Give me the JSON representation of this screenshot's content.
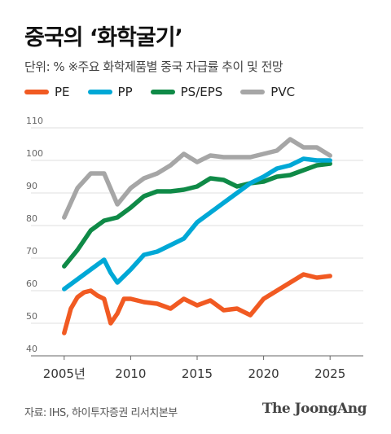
{
  "title": "중국의 ‘화학굴기’",
  "subtitle": "단위: %  ※주요 화학제품별 중국 자급률 추이 및 전망",
  "source": "자료: IHS, 하이투자증권 리서치본부",
  "brand": "The JoongAng",
  "chart_data": {
    "type": "line",
    "title": "중국의 ‘화학굴기’",
    "unit": "%",
    "xlim": [
      2002.5,
      2027.5
    ],
    "ylim": [
      40,
      110
    ],
    "y_ticks": [
      40,
      50,
      60,
      70,
      80,
      90,
      100,
      110
    ],
    "x_ticks": [
      {
        "value": 2005,
        "label": "2005년"
      },
      {
        "value": 2010,
        "label": "2010"
      },
      {
        "value": 2015,
        "label": "2015"
      },
      {
        "value": 2020,
        "label": "2020"
      },
      {
        "value": 2025,
        "label": "2025"
      }
    ],
    "grid": true,
    "legend_position": "top-left",
    "series": [
      {
        "name": "PE",
        "color": "#f15a22",
        "x": [
          2005,
          2005.5,
          2006,
          2006.5,
          2007,
          2007.5,
          2008,
          2008.5,
          2009,
          2009.5,
          2010,
          2010.5,
          2011,
          2012,
          2013,
          2014,
          2015,
          2016,
          2017,
          2018,
          2019,
          2020,
          2021,
          2022,
          2023,
          2024,
          2025
        ],
        "y": [
          47,
          54.5,
          58,
          59.5,
          60,
          58.5,
          57.5,
          50,
          53,
          57.5,
          57.5,
          57,
          56.5,
          56,
          54.5,
          57.5,
          55.5,
          57,
          54,
          54.5,
          52.5,
          57.5,
          60,
          62.5,
          65,
          64,
          64.5
        ]
      },
      {
        "name": "PP",
        "color": "#00a8d6",
        "x": [
          2005,
          2006,
          2007,
          2008,
          2008.5,
          2009,
          2010,
          2011,
          2012,
          2013,
          2014,
          2015,
          2016,
          2017,
          2018,
          2019,
          2020,
          2021,
          2022,
          2023,
          2024,
          2025
        ],
        "y": [
          60.5,
          63.5,
          66.5,
          69.5,
          65.5,
          62.5,
          66.5,
          71,
          72,
          74,
          76,
          81,
          84,
          87,
          90,
          93,
          95,
          97.5,
          98.5,
          100.5,
          100,
          100
        ]
      },
      {
        "name": "PS/EPS",
        "color": "#0f8a47",
        "x": [
          2005,
          2006,
          2007,
          2008,
          2009,
          2010,
          2011,
          2012,
          2013,
          2014,
          2015,
          2016,
          2017,
          2018,
          2019,
          2020,
          2021,
          2022,
          2023,
          2024,
          2025
        ],
        "y": [
          67.5,
          72.5,
          78.5,
          81.5,
          82.5,
          85.5,
          89,
          90.5,
          90.5,
          91,
          92,
          94.5,
          94,
          92,
          93,
          93.5,
          95,
          95.5,
          97,
          98.5,
          99
        ]
      },
      {
        "name": "PVC",
        "color": "#a6a6a6",
        "x": [
          2005,
          2006,
          2007,
          2008,
          2009,
          2010,
          2011,
          2012,
          2013,
          2014,
          2015,
          2016,
          2017,
          2018,
          2019,
          2020,
          2021,
          2022,
          2023,
          2024,
          2025
        ],
        "y": [
          82.5,
          91.5,
          96,
          96,
          86.5,
          91.5,
          94.5,
          96,
          98.5,
          102,
          99.5,
          101.5,
          101,
          101,
          101,
          102,
          103,
          106.5,
          104,
          104,
          101.5
        ]
      }
    ]
  }
}
